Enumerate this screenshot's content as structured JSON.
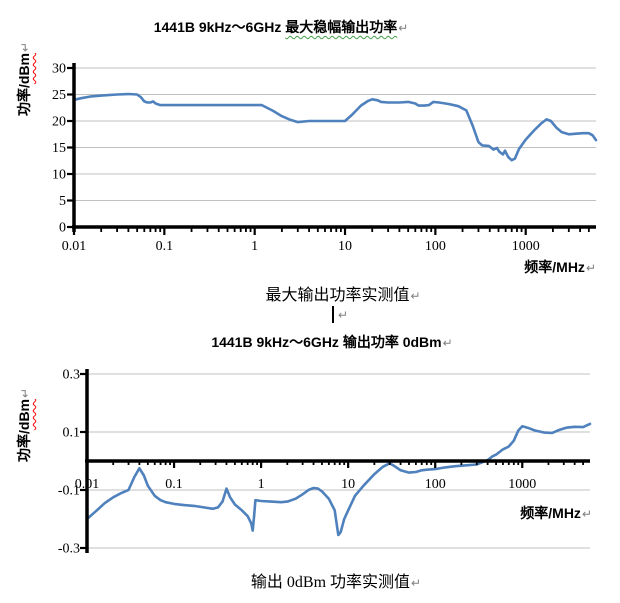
{
  "page": {
    "pilcrow": "↵",
    "cursor_glyph": "",
    "background": "#ffffff"
  },
  "section1": {
    "caption": "最大输出功率实测值"
  },
  "section2": {
    "caption": "输出 0dBm 功率实测值"
  },
  "chart_data": [
    {
      "type": "line",
      "title": {
        "prefix": "1441B 9kHz～6GHz ",
        "emphasis": "最大稳幅输出功率"
      },
      "xlabel": "频率/MHz",
      "ylabel": {
        "prefix": "功率/",
        "unit": "dBm"
      },
      "x_scale": "log",
      "x_range": [
        0.01,
        6000
      ],
      "x_ticks": [
        0.01,
        0.1,
        1,
        10,
        100,
        1000
      ],
      "y_range": [
        0,
        30
      ],
      "y_ticks": [
        0,
        5,
        10,
        15,
        20,
        25,
        30
      ],
      "y_gridlines": [
        5,
        10,
        15,
        20,
        25,
        30
      ],
      "x_axis_at": 0,
      "grid": true,
      "legend": "none",
      "line_color": "#4f81bd",
      "grid_color": "#c0c0c0",
      "axis_color": "#000000",
      "series": [
        {
          "points": [
            [
              0.01,
              24
            ],
            [
              0.012,
              24.3
            ],
            [
              0.015,
              24.6
            ],
            [
              0.02,
              24.8
            ],
            [
              0.03,
              25
            ],
            [
              0.04,
              25.1
            ],
            [
              0.05,
              25
            ],
            [
              0.055,
              24.5
            ],
            [
              0.06,
              23.7
            ],
            [
              0.065,
              23.5
            ],
            [
              0.07,
              23.5
            ],
            [
              0.075,
              23.7
            ],
            [
              0.08,
              23.3
            ],
            [
              0.09,
              23
            ],
            [
              0.1,
              23
            ],
            [
              0.15,
              23
            ],
            [
              0.2,
              23
            ],
            [
              0.3,
              23
            ],
            [
              0.5,
              23
            ],
            [
              0.8,
              23
            ],
            [
              1.2,
              23
            ],
            [
              1.6,
              21.9
            ],
            [
              2,
              20.9
            ],
            [
              2.5,
              20.2
            ],
            [
              3,
              19.8
            ],
            [
              4,
              20
            ],
            [
              6,
              20
            ],
            [
              8,
              20
            ],
            [
              10,
              20
            ],
            [
              12,
              21.2
            ],
            [
              15,
              22.9
            ],
            [
              18,
              23.8
            ],
            [
              20,
              24.1
            ],
            [
              23,
              23.9
            ],
            [
              25,
              23.6
            ],
            [
              30,
              23.5
            ],
            [
              40,
              23.5
            ],
            [
              50,
              23.6
            ],
            [
              60,
              23.3
            ],
            [
              65,
              22.9
            ],
            [
              75,
              22.9
            ],
            [
              85,
              23
            ],
            [
              95,
              23.6
            ],
            [
              110,
              23.5
            ],
            [
              140,
              23.2
            ],
            [
              180,
              22.8
            ],
            [
              220,
              22
            ],
            [
              260,
              19
            ],
            [
              300,
              16
            ],
            [
              330,
              15.4
            ],
            [
              390,
              15.3
            ],
            [
              440,
              14.6
            ],
            [
              480,
              14.9
            ],
            [
              510,
              14.2
            ],
            [
              560,
              13.7
            ],
            [
              590,
              14.4
            ],
            [
              640,
              13.2
            ],
            [
              700,
              12.6
            ],
            [
              760,
              12.9
            ],
            [
              840,
              14.7
            ],
            [
              1000,
              16.5
            ],
            [
              1250,
              18.3
            ],
            [
              1500,
              19.6
            ],
            [
              1700,
              20.3
            ],
            [
              1900,
              20
            ],
            [
              2200,
              18.7
            ],
            [
              2500,
              17.9
            ],
            [
              3000,
              17.5
            ],
            [
              3600,
              17.6
            ],
            [
              4300,
              17.7
            ],
            [
              5000,
              17.7
            ],
            [
              5500,
              17.3
            ],
            [
              6000,
              16.4
            ]
          ]
        }
      ]
    },
    {
      "type": "line",
      "title": {
        "prefix": "1441B 9kHz～6GHz 输出功率 0dBm",
        "emphasis": ""
      },
      "xlabel": "频率/MHz",
      "ylabel": {
        "prefix": "功率/",
        "unit": "dBm"
      },
      "x_scale": "log",
      "x_range": [
        0.01,
        6000
      ],
      "x_ticks": [
        0.01,
        0.1,
        1,
        10,
        100,
        1000
      ],
      "y_range": [
        -0.3,
        0.3
      ],
      "y_ticks": [
        -0.3,
        -0.1,
        0.1,
        0.3
      ],
      "y_gridlines": [
        -0.3,
        -0.1,
        0.1,
        0.3
      ],
      "x_axis_at": 0,
      "grid": true,
      "legend": "none",
      "line_color": "#4f81bd",
      "grid_color": "#c0c0c0",
      "axis_color": "#000000",
      "series": [
        {
          "points": [
            [
              0.01,
              -0.2
            ],
            [
              0.013,
              -0.17
            ],
            [
              0.016,
              -0.145
            ],
            [
              0.02,
              -0.125
            ],
            [
              0.025,
              -0.11
            ],
            [
              0.03,
              -0.1
            ],
            [
              0.035,
              -0.055
            ],
            [
              0.04,
              -0.025
            ],
            [
              0.045,
              -0.05
            ],
            [
              0.05,
              -0.085
            ],
            [
              0.06,
              -0.12
            ],
            [
              0.07,
              -0.135
            ],
            [
              0.08,
              -0.142
            ],
            [
              0.1,
              -0.148
            ],
            [
              0.13,
              -0.152
            ],
            [
              0.17,
              -0.155
            ],
            [
              0.22,
              -0.16
            ],
            [
              0.28,
              -0.165
            ],
            [
              0.32,
              -0.16
            ],
            [
              0.36,
              -0.14
            ],
            [
              0.4,
              -0.095
            ],
            [
              0.44,
              -0.125
            ],
            [
              0.5,
              -0.15
            ],
            [
              0.6,
              -0.17
            ],
            [
              0.7,
              -0.19
            ],
            [
              0.77,
              -0.215
            ],
            [
              0.8,
              -0.24
            ],
            [
              0.83,
              -0.19
            ],
            [
              0.86,
              -0.135
            ],
            [
              1,
              -0.138
            ],
            [
              1.3,
              -0.14
            ],
            [
              1.7,
              -0.142
            ],
            [
              2,
              -0.14
            ],
            [
              2.5,
              -0.13
            ],
            [
              3,
              -0.115
            ],
            [
              3.5,
              -0.1
            ],
            [
              4,
              -0.093
            ],
            [
              4.5,
              -0.095
            ],
            [
              5,
              -0.105
            ],
            [
              6,
              -0.13
            ],
            [
              7,
              -0.17
            ],
            [
              7.7,
              -0.255
            ],
            [
              8.2,
              -0.245
            ],
            [
              9,
              -0.2
            ],
            [
              10,
              -0.17
            ],
            [
              12,
              -0.12
            ],
            [
              15,
              -0.085
            ],
            [
              20,
              -0.045
            ],
            [
              25,
              -0.02
            ],
            [
              30,
              -0.008
            ],
            [
              35,
              -0.02
            ],
            [
              40,
              -0.032
            ],
            [
              50,
              -0.04
            ],
            [
              60,
              -0.038
            ],
            [
              70,
              -0.032
            ],
            [
              80,
              -0.03
            ],
            [
              100,
              -0.028
            ],
            [
              130,
              -0.022
            ],
            [
              170,
              -0.018
            ],
            [
              220,
              -0.015
            ],
            [
              300,
              -0.012
            ],
            [
              400,
              0.003
            ],
            [
              450,
              0.015
            ],
            [
              500,
              0.022
            ],
            [
              600,
              0.04
            ],
            [
              700,
              0.05
            ],
            [
              800,
              0.07
            ],
            [
              900,
              0.105
            ],
            [
              1000,
              0.12
            ],
            [
              1150,
              0.115
            ],
            [
              1400,
              0.105
            ],
            [
              1800,
              0.098
            ],
            [
              2200,
              0.097
            ],
            [
              2700,
              0.108
            ],
            [
              3200,
              0.115
            ],
            [
              4000,
              0.118
            ],
            [
              5000,
              0.117
            ],
            [
              6000,
              0.128
            ]
          ]
        }
      ]
    }
  ]
}
